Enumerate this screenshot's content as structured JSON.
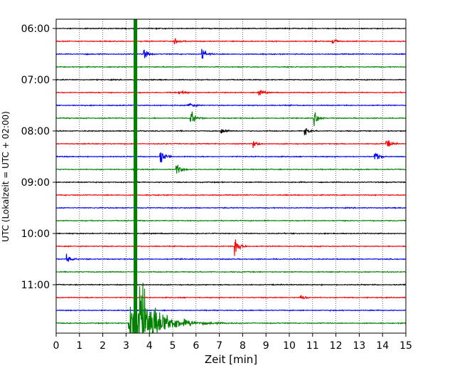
{
  "chart_data": {
    "type": "line",
    "title": "",
    "xlabel": "Zeit  [min]",
    "ylabel": "UTC (Lokalzeit = UTC + 02:00)",
    "xlim": [
      0,
      15
    ],
    "x_ticks": [
      "0",
      "1",
      "2",
      "3",
      "4",
      "5",
      "6",
      "7",
      "8",
      "9",
      "10",
      "11",
      "12",
      "13",
      "14",
      "15"
    ],
    "y_tick_labels": [
      "06:00",
      "07:00",
      "08:00",
      "09:00",
      "10:00",
      "11:00"
    ],
    "grid": "vertical dotted",
    "colors": [
      "#000000",
      "#ff0000",
      "#0000ff",
      "#008000"
    ],
    "traces_per_hour": 4,
    "trace_interval_min": 15,
    "trace_start_times": [
      "06:00",
      "06:15",
      "06:30",
      "06:45",
      "07:00",
      "07:15",
      "07:30",
      "07:45",
      "08:00",
      "08:15",
      "08:30",
      "08:45",
      "09:00",
      "09:15",
      "09:30",
      "09:45",
      "10:00",
      "10:15",
      "10:30",
      "10:45",
      "11:00",
      "11:15",
      "11:30",
      "11:45"
    ],
    "events": [
      {
        "trace": "06:15",
        "t_min": 5.1,
        "amp": 0.35
      },
      {
        "trace": "06:15",
        "t_min": 11.9,
        "amp": 0.3
      },
      {
        "trace": "06:30",
        "t_min": 3.8,
        "amp": 0.6
      },
      {
        "trace": "06:30",
        "t_min": 6.3,
        "amp": 0.7
      },
      {
        "trace": "07:15",
        "t_min": 5.3,
        "amp": 0.5
      },
      {
        "trace": "07:15",
        "t_min": 8.7,
        "amp": 0.35
      },
      {
        "trace": "07:30",
        "t_min": 5.7,
        "amp": 0.5
      },
      {
        "trace": "07:45",
        "t_min": 5.8,
        "amp": 0.9
      },
      {
        "trace": "07:45",
        "t_min": 11.1,
        "amp": 0.9
      },
      {
        "trace": "08:00",
        "t_min": 7.1,
        "amp": 0.45
      },
      {
        "trace": "08:00",
        "t_min": 10.7,
        "amp": 0.5
      },
      {
        "trace": "08:15",
        "t_min": 8.5,
        "amp": 0.5
      },
      {
        "trace": "08:15",
        "t_min": 14.2,
        "amp": 0.6
      },
      {
        "trace": "08:30",
        "t_min": 4.5,
        "amp": 0.9
      },
      {
        "trace": "08:30",
        "t_min": 13.7,
        "amp": 0.6
      },
      {
        "trace": "08:45",
        "t_min": 5.2,
        "amp": 0.7
      },
      {
        "trace": "10:15",
        "t_min": 7.7,
        "amp": 1.4
      },
      {
        "trace": "10:30",
        "t_min": 0.5,
        "amp": 0.5
      },
      {
        "trace": "11:15",
        "t_min": 10.5,
        "amp": 0.4
      }
    ],
    "earthquake": {
      "trace": "11:45",
      "t_min": 3.1,
      "main_t_min": 3.4,
      "decay_end_min": 6.5
    }
  }
}
